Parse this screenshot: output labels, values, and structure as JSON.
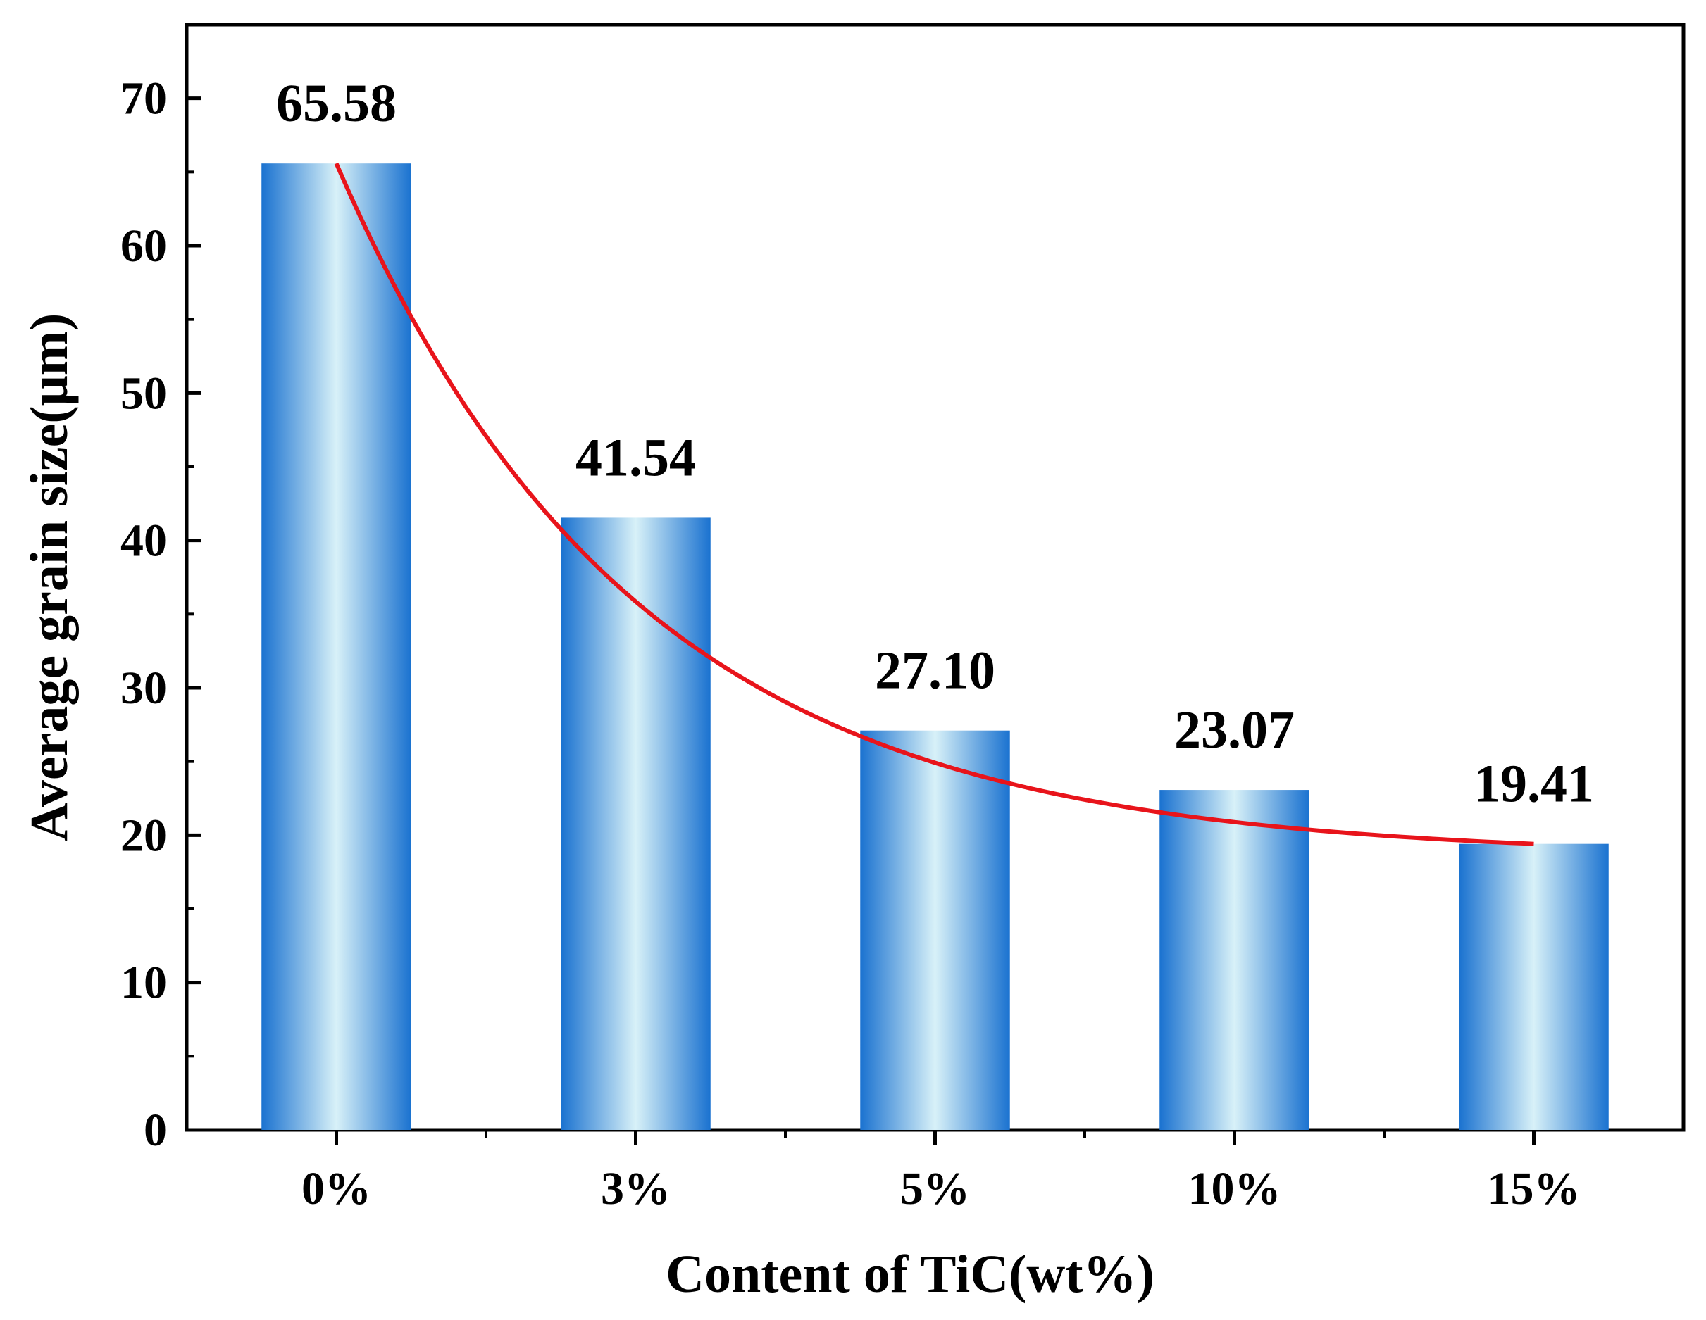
{
  "chart_data": {
    "type": "bar",
    "categories": [
      "0%",
      "3%",
      "5%",
      "10%",
      "15%"
    ],
    "values": [
      65.58,
      41.54,
      27.1,
      23.07,
      19.41
    ],
    "data_labels": [
      "65.58",
      "41.54",
      "27.10",
      "23.07",
      "19.41"
    ],
    "trend_line": {
      "type": "exponential-decay-fit",
      "color": "#e8141b"
    },
    "xlabel": "Content of TiC(wt%)",
    "ylabel": "Average grain size(μm)",
    "ylim": [
      0,
      75
    ],
    "yticks": [
      0,
      10,
      20,
      30,
      40,
      50,
      60,
      70
    ],
    "grid": false,
    "colors": {
      "bar_edge": "#1a72d0",
      "bar_center": "#d8f1f8",
      "axis": "#000000"
    }
  }
}
